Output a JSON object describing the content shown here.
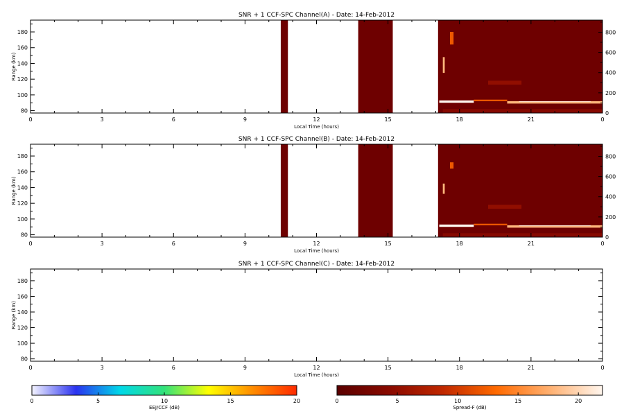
{
  "chart_data": [
    {
      "type": "heatmap",
      "title": "SNR + 1 CCF-SPC Channel(A) - Date: 14-Feb-2012",
      "xlabel": "Local Time (hours)",
      "ylabel": "Range (km)",
      "xlim": [
        0,
        24
      ],
      "ylim": [
        77,
        195
      ],
      "x_ticks": [
        "0",
        "3",
        "6",
        "9",
        "12",
        "15",
        "18",
        "21",
        "0"
      ],
      "y_ticks": [
        "80",
        "100",
        "120",
        "140",
        "160",
        "180"
      ],
      "y2lim": [
        0,
        920
      ],
      "y2_ticks": [
        "0",
        "200",
        "400",
        "600",
        "800"
      ],
      "colorscale": "Spread-F (dB)",
      "background_blocks": [
        {
          "x0": 10.5,
          "x1": 10.8
        },
        {
          "x0": 13.75,
          "x1": 15.2
        },
        {
          "x0": 17.1,
          "x1": 24.0
        }
      ],
      "features": [
        {
          "x0": 17.15,
          "x1": 18.6,
          "y0": 90,
          "y1": 93,
          "db": 22
        },
        {
          "x0": 18.6,
          "x1": 20.0,
          "y0": 92,
          "y1": 94,
          "db": 12
        },
        {
          "x0": 20.0,
          "x1": 24.0,
          "y0": 89,
          "y1": 92,
          "db": 18
        },
        {
          "x0": 20.5,
          "x1": 23.5,
          "y0": 91,
          "y1": 92,
          "db": 21
        },
        {
          "x0": 19.2,
          "x1": 20.6,
          "y0": 113,
          "y1": 118,
          "db": 5
        },
        {
          "x0": 17.6,
          "x1": 17.75,
          "y0": 164,
          "y1": 180,
          "db": 12
        },
        {
          "x0": 17.3,
          "x1": 17.38,
          "y0": 128,
          "y1": 148,
          "db": 18
        },
        {
          "x0": 17.3,
          "x1": 24.0,
          "y0": 77,
          "y1": 82,
          "db": 4
        }
      ]
    },
    {
      "type": "heatmap",
      "title": "SNR + 1 CCF-SPC Channel(B) - Date: 14-Feb-2012",
      "xlabel": "Local Time (hours)",
      "ylabel": "Range (km)",
      "xlim": [
        0,
        24
      ],
      "ylim": [
        77,
        195
      ],
      "x_ticks": [
        "0",
        "3",
        "6",
        "9",
        "12",
        "15",
        "18",
        "21",
        "0"
      ],
      "y_ticks": [
        "80",
        "100",
        "120",
        "140",
        "160",
        "180"
      ],
      "y2lim": [
        0,
        920
      ],
      "y2_ticks": [
        "0",
        "200",
        "400",
        "600",
        "800"
      ],
      "colorscale": "Spread-F (dB)",
      "background_blocks": [
        {
          "x0": 10.5,
          "x1": 10.8
        },
        {
          "x0": 13.75,
          "x1": 15.2
        },
        {
          "x0": 17.1,
          "x1": 24.0
        }
      ],
      "features": [
        {
          "x0": 17.15,
          "x1": 18.6,
          "y0": 90,
          "y1": 93,
          "db": 22
        },
        {
          "x0": 18.6,
          "x1": 20.0,
          "y0": 92,
          "y1": 94,
          "db": 12
        },
        {
          "x0": 20.0,
          "x1": 24.0,
          "y0": 89,
          "y1": 92,
          "db": 18
        },
        {
          "x0": 20.5,
          "x1": 23.5,
          "y0": 91,
          "y1": 92,
          "db": 21
        },
        {
          "x0": 19.2,
          "x1": 20.6,
          "y0": 113,
          "y1": 118,
          "db": 5
        },
        {
          "x0": 17.6,
          "x1": 17.75,
          "y0": 164,
          "y1": 172,
          "db": 12
        },
        {
          "x0": 17.3,
          "x1": 17.38,
          "y0": 132,
          "y1": 145,
          "db": 18
        },
        {
          "x0": 17.3,
          "x1": 24.0,
          "y0": 77,
          "y1": 82,
          "db": 4
        }
      ]
    },
    {
      "type": "heatmap",
      "title": "SNR + 1 CCF-SPC Channel(C) - Date: 14-Feb-2012",
      "xlabel": "Local Time (hours)",
      "ylabel": "Range (km)",
      "xlim": [
        0,
        24
      ],
      "ylim": [
        77,
        195
      ],
      "x_ticks": [
        "0",
        "3",
        "6",
        "9",
        "12",
        "15",
        "18",
        "21",
        "0"
      ],
      "y_ticks": [
        "80",
        "100",
        "120",
        "140",
        "160",
        "180"
      ],
      "background_blocks": [],
      "features": []
    }
  ],
  "colorbars": [
    {
      "label": "EEJ/CCF (dB)",
      "ticks": [
        "0",
        "5",
        "10",
        "15",
        "20"
      ],
      "range": [
        0,
        20
      ],
      "colors": [
        "#f4f4ff",
        "#2a32f0",
        "#00d8e8",
        "#32e27a",
        "#ffff00",
        "#ff8c00",
        "#ff2a00"
      ]
    },
    {
      "label": "Spread-F (dB)",
      "ticks": [
        "0",
        "5",
        "10",
        "15",
        "20"
      ],
      "range": [
        0,
        22
      ],
      "colors": [
        "#5a0000",
        "#8a0a00",
        "#c02800",
        "#ff6a00",
        "#ffb070",
        "#fff6ee"
      ]
    }
  ],
  "colors": {
    "background_fill": "#6e0000",
    "spread_f_scale": [
      "#5a0000",
      "#8a0a00",
      "#c02800",
      "#ff6a00",
      "#ffb070",
      "#fff6ee"
    ]
  }
}
